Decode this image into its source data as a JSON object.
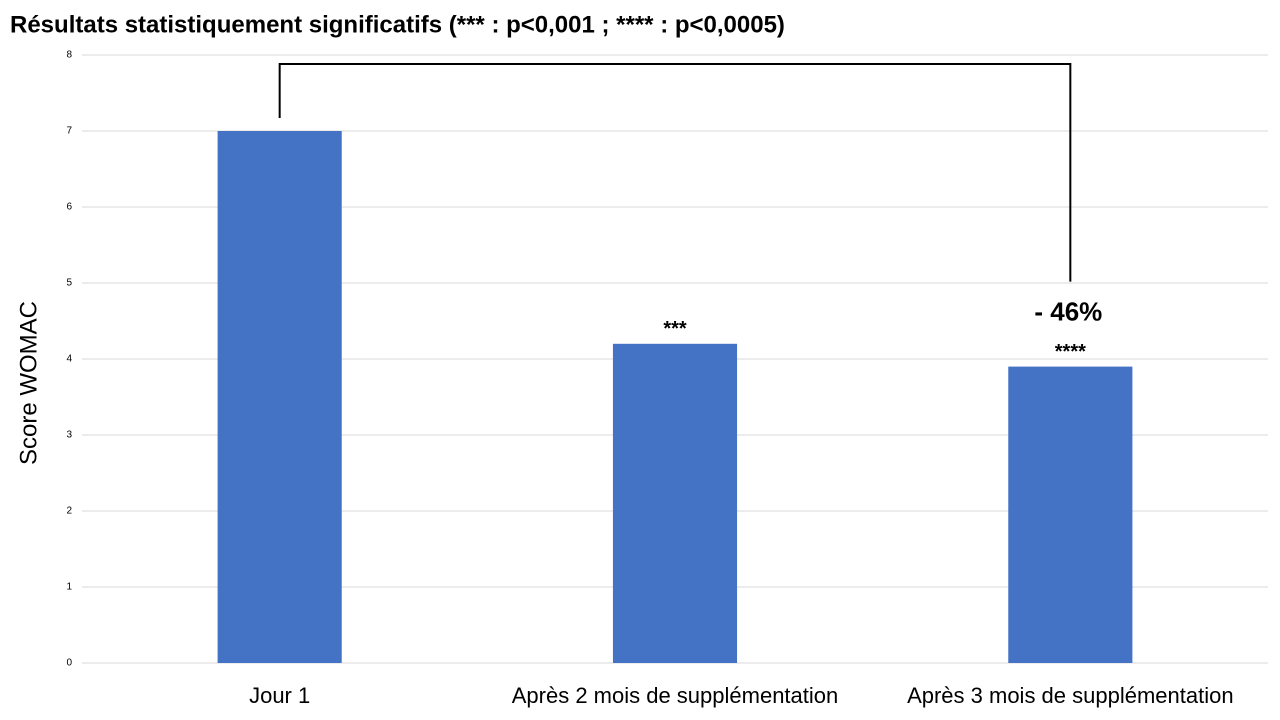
{
  "chart_data": {
    "type": "bar",
    "title": "Résultats statistiquement significatifs (*** : p<0,001 ; **** : p<0,0005)",
    "y_label": "Score WOMAC",
    "categories": [
      "Jour 1",
      "Après 2 mois de supplémentation",
      "Après 3 mois de supplémentation"
    ],
    "values": [
      7,
      4.2,
      3.9
    ],
    "significance_labels": [
      null,
      "***",
      "****"
    ],
    "change_label": "- 46%",
    "color": "#4472c4",
    "ylim": [
      0,
      8
    ],
    "yticks": [
      0,
      1,
      2,
      3,
      4,
      5,
      6,
      7,
      8
    ],
    "grid": true
  }
}
